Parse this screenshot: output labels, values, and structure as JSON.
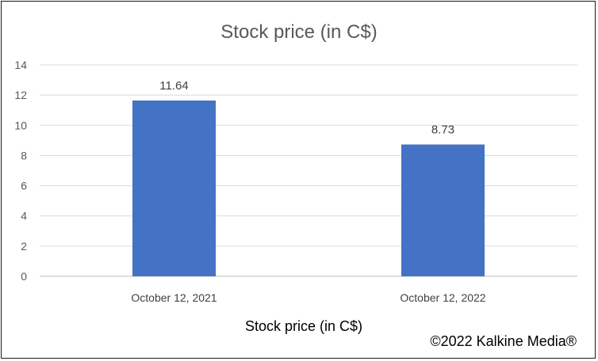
{
  "chart_data": {
    "type": "bar",
    "title": "Stock price (in C$)",
    "categories": [
      "October 12, 2021",
      "October 12, 2022"
    ],
    "values": [
      11.64,
      8.73
    ],
    "data_labels": [
      "11.64",
      "8.73"
    ],
    "xlabel": "Stock price (in C$)",
    "ylabel": "",
    "ylim": [
      0,
      14
    ],
    "yticks": [
      0,
      2,
      4,
      6,
      8,
      10,
      12,
      14
    ],
    "grid": true,
    "legend": "none",
    "bar_color": "#4472C4"
  },
  "footer": {
    "copyright": "©2022 Kalkine Media®"
  }
}
